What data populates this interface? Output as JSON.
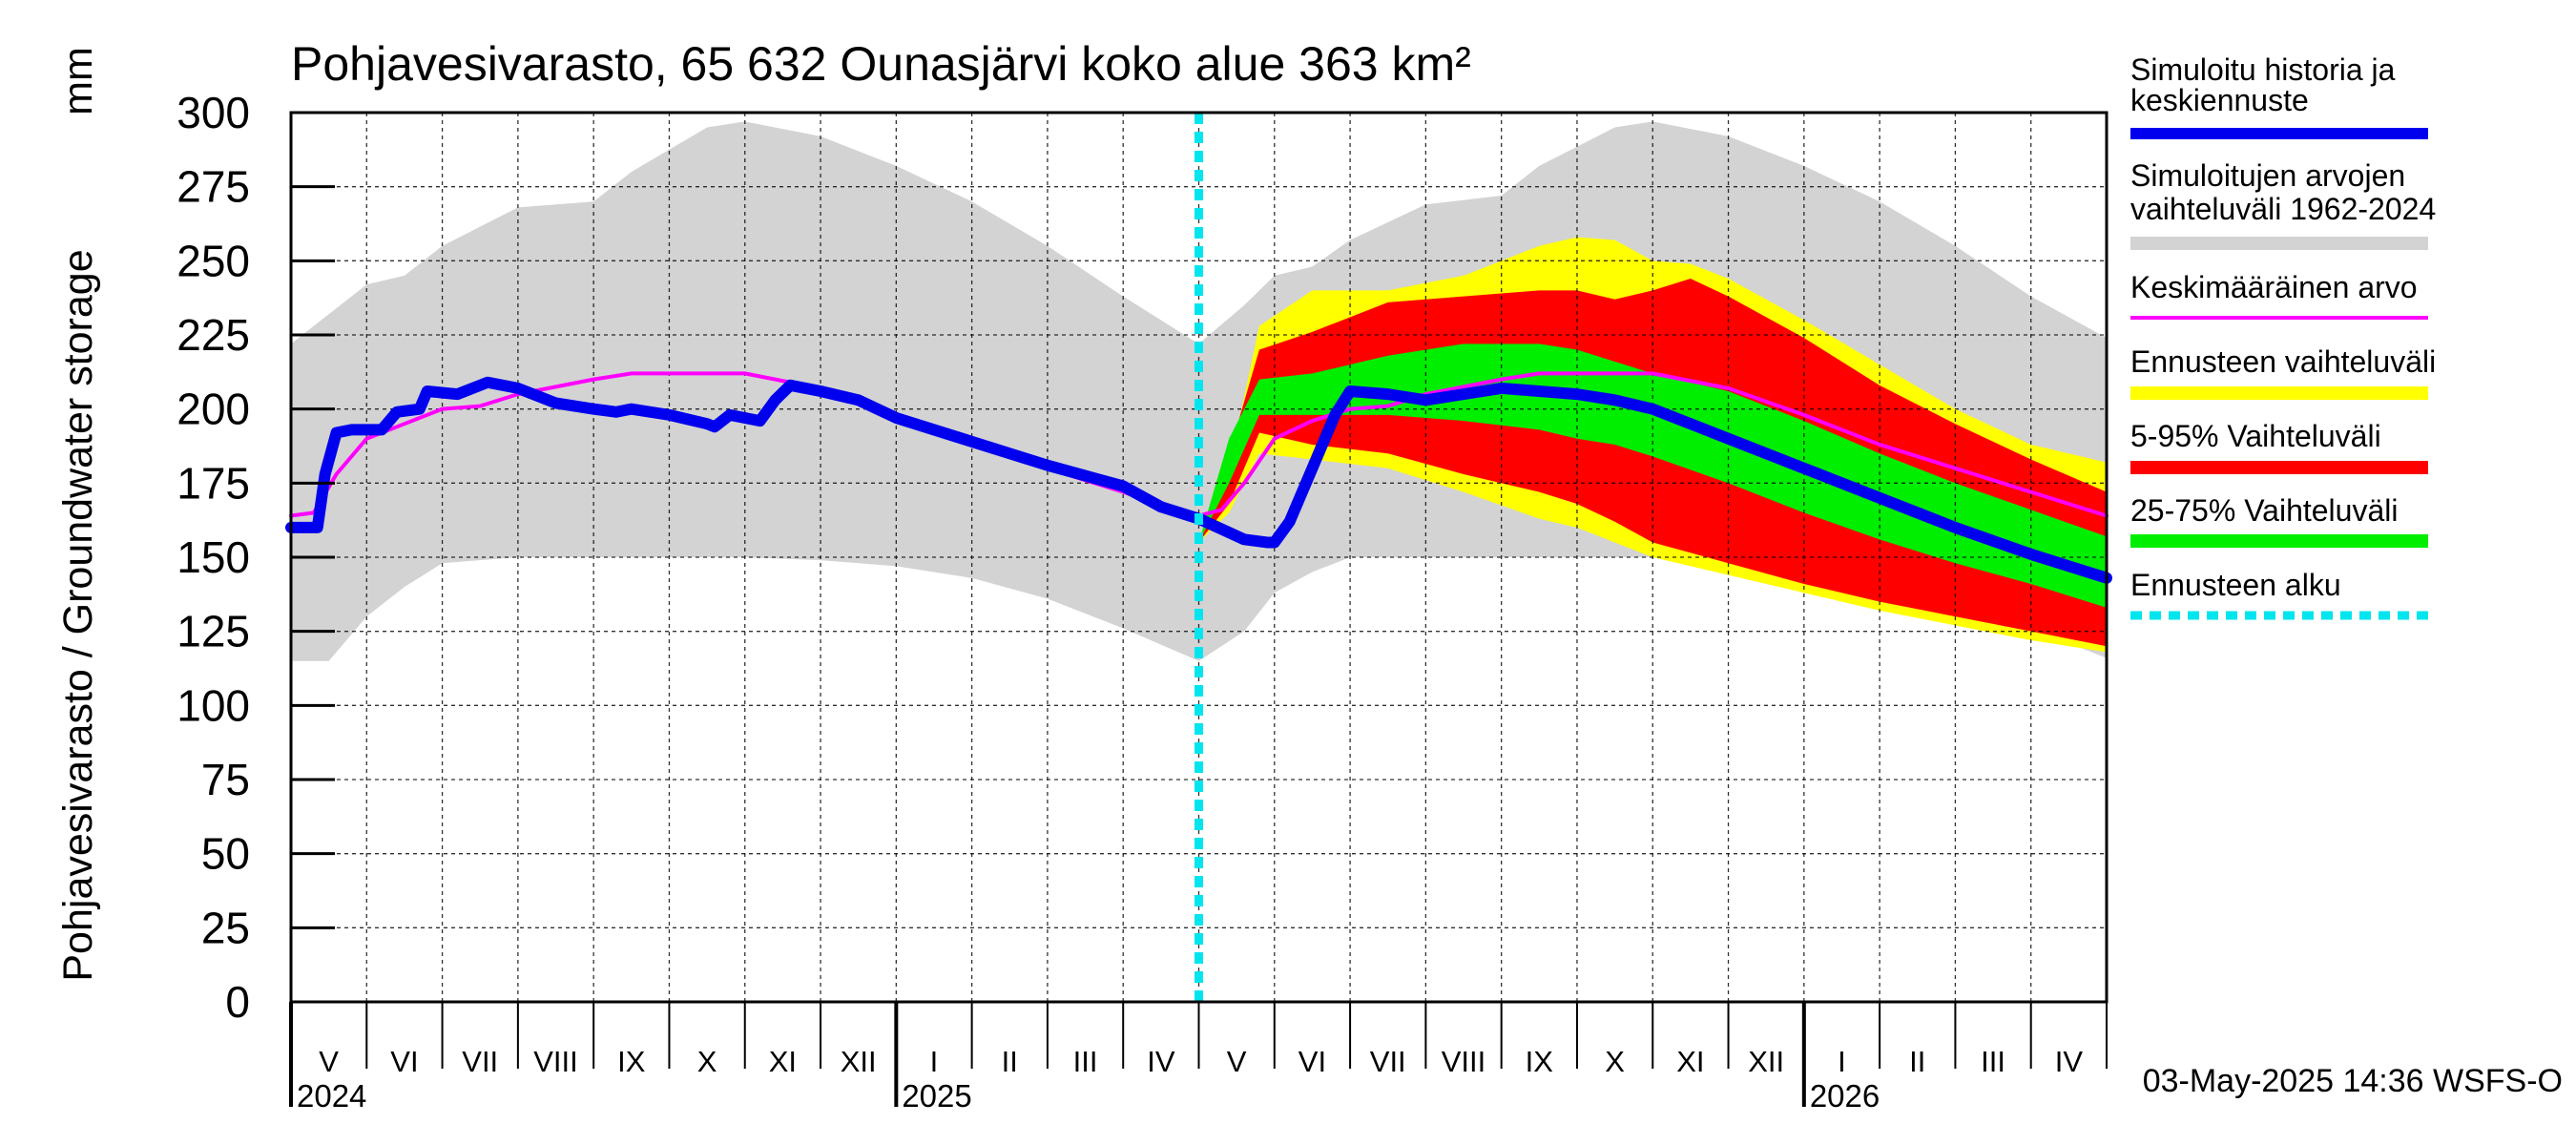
{
  "chart_data": {
    "type": "area",
    "title": "Pohjavesivarasto, 65 632 Ounasjärvi koko alue 363 km²",
    "ylabel": "Pohjavesivarasto / Groundwater storage",
    "yunit": "mm",
    "ylim": [
      0,
      300
    ],
    "yticks": [
      "0",
      "25",
      "50",
      "75",
      "100",
      "125",
      "150",
      "175",
      "200",
      "225",
      "250",
      "275",
      "300"
    ],
    "xlim": [
      0,
      24
    ],
    "months": [
      "V",
      "VI",
      "VII",
      "VIII",
      "IX",
      "X",
      "XI",
      "XII",
      "I",
      "II",
      "III",
      "IV",
      "V",
      "VI",
      "VII",
      "VIII",
      "IX",
      "X",
      "XI",
      "XII",
      "I",
      "II",
      "III",
      "IV"
    ],
    "years": [
      {
        "label": "2024",
        "x": 0
      },
      {
        "label": "2025",
        "x": 8
      },
      {
        "label": "2026",
        "x": 20
      }
    ],
    "forecast_start": 12,
    "timestamp": "03-May-2025 14:36 WSFS-O",
    "legend": [
      {
        "label": "Simuloitu historia ja keskiennuste",
        "color": "#0000ee",
        "style": "thick"
      },
      {
        "label": "Simuloitujen arvojen vaihteluväli 1962-2024",
        "color": "#d3d3d3",
        "style": "band"
      },
      {
        "label": "Keskimääräinen arvo",
        "color": "#ff00ff",
        "style": "thin"
      },
      {
        "label": "Ennusteen vaihteluväli",
        "color": "#ffff00",
        "style": "band"
      },
      {
        "label": "5-95% Vaihteluväli",
        "color": "#ff0000",
        "style": "band"
      },
      {
        "label": "25-75% Vaihteluväli",
        "color": "#00ee00",
        "style": "band"
      },
      {
        "label": "Ennusteen alku",
        "color": "#00e5ee",
        "style": "dashed"
      }
    ],
    "series": [
      {
        "name": "Simuloitujen arvojen vaihteluväli 1962-2024",
        "role": "range",
        "color": "#d3d3d3",
        "upper": [
          [
            0,
            222
          ],
          [
            0.5,
            232
          ],
          [
            1,
            242
          ],
          [
            1.5,
            245
          ],
          [
            2,
            255
          ],
          [
            3,
            268
          ],
          [
            4,
            270
          ],
          [
            4.5,
            280
          ],
          [
            5.5,
            295
          ],
          [
            6,
            297
          ],
          [
            7,
            292
          ],
          [
            8,
            282
          ],
          [
            9,
            270
          ],
          [
            10,
            255
          ],
          [
            11,
            238
          ],
          [
            12,
            222
          ],
          [
            12.6,
            235
          ],
          [
            13,
            245
          ],
          [
            13.5,
            248
          ],
          [
            14,
            257
          ],
          [
            15,
            269
          ],
          [
            16,
            272
          ],
          [
            16.5,
            282
          ],
          [
            17.5,
            295
          ],
          [
            18,
            297
          ],
          [
            19,
            292
          ],
          [
            20,
            282
          ],
          [
            21,
            270
          ],
          [
            22,
            255
          ],
          [
            23,
            238
          ],
          [
            24,
            224
          ]
        ],
        "lower": [
          [
            0,
            115
          ],
          [
            0.5,
            115
          ],
          [
            1,
            130
          ],
          [
            1.5,
            140
          ],
          [
            2,
            148
          ],
          [
            3,
            150
          ],
          [
            4,
            150
          ],
          [
            5,
            150
          ],
          [
            6,
            150
          ],
          [
            7,
            149
          ],
          [
            8,
            147
          ],
          [
            9,
            143
          ],
          [
            10,
            136
          ],
          [
            11,
            126
          ],
          [
            12,
            115
          ],
          [
            12.6,
            125
          ],
          [
            13,
            138
          ],
          [
            13.5,
            145
          ],
          [
            14,
            150
          ],
          [
            15,
            150
          ],
          [
            16,
            150
          ],
          [
            17,
            150
          ],
          [
            18,
            150
          ],
          [
            19,
            150
          ],
          [
            20,
            147
          ],
          [
            21,
            142
          ],
          [
            22,
            136
          ],
          [
            23,
            126
          ],
          [
            24,
            116
          ]
        ]
      },
      {
        "name": "Ennusteen vaihteluväli",
        "role": "range",
        "color": "#ffff00",
        "upper": [
          [
            12,
            155
          ],
          [
            12.4,
            180
          ],
          [
            12.8,
            228
          ],
          [
            13.5,
            240
          ],
          [
            14.5,
            240
          ],
          [
            15.5,
            245
          ],
          [
            16.5,
            255
          ],
          [
            17,
            258
          ],
          [
            17.5,
            257
          ],
          [
            18,
            250
          ],
          [
            18.5,
            249
          ],
          [
            19,
            244
          ],
          [
            20,
            230
          ],
          [
            21,
            215
          ],
          [
            22,
            200
          ],
          [
            23,
            188
          ],
          [
            24,
            182
          ]
        ],
        "lower": [
          [
            12,
            155
          ],
          [
            12.4,
            165
          ],
          [
            12.8,
            185
          ],
          [
            13.5,
            183
          ],
          [
            14.5,
            180
          ],
          [
            15.5,
            172
          ],
          [
            16.5,
            163
          ],
          [
            17,
            160
          ],
          [
            17.5,
            155
          ],
          [
            18,
            150
          ],
          [
            19,
            144
          ],
          [
            20,
            138
          ],
          [
            21,
            132
          ],
          [
            22,
            127
          ],
          [
            23,
            122
          ],
          [
            24,
            118
          ]
        ]
      },
      {
        "name": "5-95% Vaihteluväli",
        "role": "range",
        "color": "#ff0000",
        "upper": [
          [
            12,
            155
          ],
          [
            12.4,
            185
          ],
          [
            12.8,
            220
          ],
          [
            13.5,
            226
          ],
          [
            14.5,
            236
          ],
          [
            15.5,
            238
          ],
          [
            16.5,
            240
          ],
          [
            17,
            240
          ],
          [
            17.5,
            237
          ],
          [
            18,
            240
          ],
          [
            18.5,
            244
          ],
          [
            19,
            238
          ],
          [
            20,
            224
          ],
          [
            21,
            208
          ],
          [
            22,
            195
          ],
          [
            23,
            183
          ],
          [
            24,
            172
          ]
        ],
        "lower": [
          [
            12,
            155
          ],
          [
            12.4,
            168
          ],
          [
            12.8,
            192
          ],
          [
            13.5,
            188
          ],
          [
            14.5,
            185
          ],
          [
            15.5,
            178
          ],
          [
            16.5,
            172
          ],
          [
            17,
            168
          ],
          [
            17.5,
            162
          ],
          [
            18,
            155
          ],
          [
            19,
            148
          ],
          [
            20,
            141
          ],
          [
            21,
            135
          ],
          [
            22,
            130
          ],
          [
            23,
            125
          ],
          [
            24,
            120
          ]
        ]
      },
      {
        "name": "25-75% Vaihteluväli",
        "role": "range",
        "color": "#00ee00",
        "upper": [
          [
            12,
            155
          ],
          [
            12.4,
            190
          ],
          [
            12.8,
            210
          ],
          [
            13.5,
            212
          ],
          [
            14.5,
            218
          ],
          [
            15.5,
            222
          ],
          [
            16.5,
            222
          ],
          [
            17,
            220
          ],
          [
            17.5,
            216
          ],
          [
            18,
            212
          ],
          [
            19,
            206
          ],
          [
            20,
            196
          ],
          [
            21,
            185
          ],
          [
            22,
            175
          ],
          [
            23,
            166
          ],
          [
            24,
            157
          ]
        ],
        "lower": [
          [
            12,
            155
          ],
          [
            12.4,
            175
          ],
          [
            12.8,
            198
          ],
          [
            13.5,
            198
          ],
          [
            14.5,
            198
          ],
          [
            15.5,
            196
          ],
          [
            16.5,
            193
          ],
          [
            17,
            190
          ],
          [
            17.5,
            188
          ],
          [
            18,
            184
          ],
          [
            19,
            175
          ],
          [
            20,
            165
          ],
          [
            21,
            156
          ],
          [
            22,
            148
          ],
          [
            23,
            141
          ],
          [
            24,
            133
          ]
        ]
      },
      {
        "name": "Keskimääräinen arvo",
        "role": "line",
        "color": "#ff00ff",
        "points": [
          [
            0,
            164
          ],
          [
            0.3,
            165
          ],
          [
            0.6,
            178
          ],
          [
            1,
            190
          ],
          [
            1.5,
            195
          ],
          [
            2,
            200
          ],
          [
            2.5,
            201
          ],
          [
            3,
            205
          ],
          [
            4,
            210
          ],
          [
            4.5,
            212
          ],
          [
            5,
            212
          ],
          [
            6,
            212
          ],
          [
            7,
            207
          ],
          [
            8,
            198
          ],
          [
            9,
            188
          ],
          [
            10,
            180
          ],
          [
            11,
            172
          ],
          [
            11.8,
            165
          ],
          [
            12,
            164
          ],
          [
            12.3,
            166
          ],
          [
            12.6,
            175
          ],
          [
            13,
            190
          ],
          [
            13.5,
            196
          ],
          [
            14,
            200
          ],
          [
            14.5,
            201
          ],
          [
            15,
            205
          ],
          [
            16,
            210
          ],
          [
            16.5,
            212
          ],
          [
            17,
            212
          ],
          [
            18,
            212
          ],
          [
            19,
            207
          ],
          [
            20,
            198
          ],
          [
            21,
            188
          ],
          [
            22,
            180
          ],
          [
            23,
            172
          ],
          [
            24,
            164
          ]
        ]
      },
      {
        "name": "Simuloitu historia ja keskiennuste",
        "role": "line",
        "color": "#0000ee",
        "points": [
          [
            0,
            160
          ],
          [
            0.35,
            160
          ],
          [
            0.45,
            178
          ],
          [
            0.6,
            192
          ],
          [
            0.8,
            193
          ],
          [
            1.2,
            193
          ],
          [
            1.4,
            199
          ],
          [
            1.7,
            200
          ],
          [
            1.8,
            206
          ],
          [
            2.2,
            205
          ],
          [
            2.5,
            208
          ],
          [
            2.6,
            209
          ],
          [
            3,
            207
          ],
          [
            3.5,
            202
          ],
          [
            4,
            200
          ],
          [
            4.3,
            199
          ],
          [
            4.5,
            200
          ],
          [
            5,
            198
          ],
          [
            5.5,
            195
          ],
          [
            5.6,
            194
          ],
          [
            5.8,
            198
          ],
          [
            6,
            197
          ],
          [
            6.2,
            196
          ],
          [
            6.4,
            203
          ],
          [
            6.6,
            208
          ],
          [
            7,
            206
          ],
          [
            7.5,
            203
          ],
          [
            8,
            197
          ],
          [
            9,
            189
          ],
          [
            10,
            181
          ],
          [
            11,
            174
          ],
          [
            11.5,
            167
          ],
          [
            12,
            163
          ],
          [
            12.6,
            156
          ],
          [
            12.9,
            155
          ],
          [
            13,
            155
          ],
          [
            13.2,
            162
          ],
          [
            13.5,
            180
          ],
          [
            13.8,
            198
          ],
          [
            14,
            206
          ],
          [
            14.5,
            205
          ],
          [
            15,
            203
          ],
          [
            15.5,
            205
          ],
          [
            16,
            207
          ],
          [
            16.5,
            206
          ],
          [
            17,
            205
          ],
          [
            17.5,
            203
          ],
          [
            18,
            200
          ],
          [
            19,
            190
          ],
          [
            20,
            180
          ],
          [
            21,
            170
          ],
          [
            22,
            160
          ],
          [
            23,
            151
          ],
          [
            24,
            143
          ]
        ]
      }
    ]
  }
}
